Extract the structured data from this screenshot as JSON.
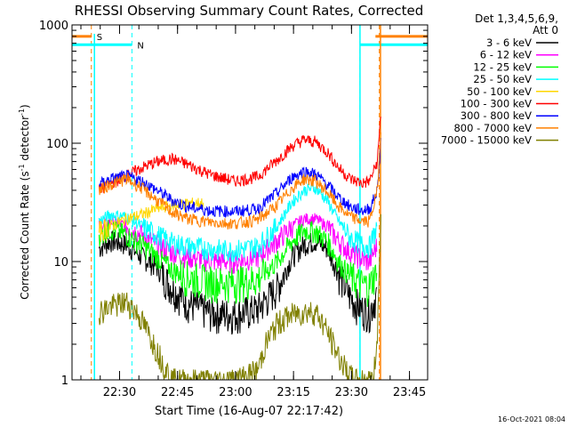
{
  "chart_data": {
    "type": "line",
    "title": "RHESSI Observing Summary Count Rates, Corrected",
    "xlabel": "Start Time (16-Aug-07 22:17:42)",
    "ylabel_main": "Corrected Count Rate (s",
    "ylabel_sup1": "-1",
    "ylabel_mid": " detector",
    "ylabel_sup2": "-1",
    "ylabel_end": ")",
    "yscale": "log",
    "ylim": [
      1,
      1000
    ],
    "xlim_minutes": [
      0,
      92
    ],
    "x_ticks": [
      {
        "label": "22:30",
        "minutes": 12.3
      },
      {
        "label": "22:45",
        "minutes": 27.3
      },
      {
        "label": "23:00",
        "minutes": 42.3
      },
      {
        "label": "23:15",
        "minutes": 57.3
      },
      {
        "label": "23:30",
        "minutes": 72.3
      },
      {
        "label": "23:45",
        "minutes": 87.3
      }
    ],
    "y_ticks": [
      {
        "label": "1",
        "value": 1
      },
      {
        "label": "10",
        "value": 10
      },
      {
        "label": "100",
        "value": 100
      },
      {
        "label": "1000",
        "value": 1000
      }
    ],
    "legend": {
      "header1": "Det 1,3,4,5,6,9,",
      "header2": "Att 0",
      "position": "right"
    },
    "series": [
      {
        "name": "3 - 6 keV",
        "color": "#000000",
        "points": [
          [
            7,
            13
          ],
          [
            10,
            15
          ],
          [
            14,
            14
          ],
          [
            18,
            11
          ],
          [
            22,
            9
          ],
          [
            26,
            6
          ],
          [
            30,
            4.5
          ],
          [
            36,
            3.7
          ],
          [
            42,
            3.6
          ],
          [
            48,
            4
          ],
          [
            53,
            6
          ],
          [
            57,
            11
          ],
          [
            60,
            14
          ],
          [
            63,
            15
          ],
          [
            66,
            13
          ],
          [
            69,
            8
          ],
          [
            72,
            5
          ],
          [
            75,
            4
          ],
          [
            77,
            3.8
          ],
          [
            79,
            5.5
          ]
        ]
      },
      {
        "name": "6 - 12 keV",
        "color": "#ff00ff",
        "points": [
          [
            7,
            20
          ],
          [
            10,
            22
          ],
          [
            14,
            20
          ],
          [
            18,
            17
          ],
          [
            22,
            14
          ],
          [
            26,
            12
          ],
          [
            30,
            11
          ],
          [
            36,
            10.2
          ],
          [
            42,
            10
          ],
          [
            48,
            11
          ],
          [
            53,
            15
          ],
          [
            57,
            20
          ],
          [
            60,
            23
          ],
          [
            63,
            23
          ],
          [
            66,
            20
          ],
          [
            69,
            15
          ],
          [
            72,
            12
          ],
          [
            75,
            10.5
          ],
          [
            77,
            10
          ],
          [
            79,
            14
          ]
        ]
      },
      {
        "name": "12 - 25 keV",
        "color": "#00ff00",
        "points": [
          [
            7,
            17
          ],
          [
            10,
            19
          ],
          [
            14,
            17
          ],
          [
            18,
            14
          ],
          [
            22,
            11
          ],
          [
            26,
            8.5
          ],
          [
            30,
            7.5
          ],
          [
            36,
            6.8
          ],
          [
            42,
            6.7
          ],
          [
            48,
            7.2
          ],
          [
            53,
            10
          ],
          [
            57,
            15
          ],
          [
            60,
            18.5
          ],
          [
            63,
            18
          ],
          [
            66,
            15
          ],
          [
            69,
            10
          ],
          [
            72,
            7.5
          ],
          [
            75,
            6.5
          ],
          [
            77,
            6.3
          ],
          [
            79,
            9
          ]
        ]
      },
      {
        "name": "25 - 50 keV",
        "color": "#00ffff",
        "points": [
          [
            7,
            22
          ],
          [
            10,
            25
          ],
          [
            14,
            24
          ],
          [
            18,
            20
          ],
          [
            22,
            17
          ],
          [
            26,
            14.5
          ],
          [
            30,
            13.5
          ],
          [
            36,
            12.8
          ],
          [
            42,
            12.5
          ],
          [
            48,
            13.5
          ],
          [
            53,
            20
          ],
          [
            57,
            32
          ],
          [
            60,
            40
          ],
          [
            63,
            42
          ],
          [
            66,
            33
          ],
          [
            69,
            22
          ],
          [
            72,
            16
          ],
          [
            75,
            14
          ],
          [
            77,
            13.5
          ],
          [
            79,
            20
          ]
        ]
      },
      {
        "name": "50 - 100 keV",
        "color": "#ffd700",
        "points": [
          [
            7,
            18
          ],
          [
            10,
            20
          ],
          [
            14,
            23
          ],
          [
            18,
            25
          ],
          [
            22,
            28
          ],
          [
            26,
            30
          ],
          [
            30,
            31
          ],
          [
            34,
            31.5
          ]
        ]
      },
      {
        "name": "100 - 300 keV",
        "color": "#ff0000",
        "points": [
          [
            7,
            40
          ],
          [
            10,
            46
          ],
          [
            14,
            53
          ],
          [
            18,
            62
          ],
          [
            22,
            70
          ],
          [
            26,
            74
          ],
          [
            30,
            66
          ],
          [
            36,
            54
          ],
          [
            42,
            48
          ],
          [
            48,
            52
          ],
          [
            53,
            72
          ],
          [
            57,
            95
          ],
          [
            60,
            107
          ],
          [
            63,
            103
          ],
          [
            66,
            85
          ],
          [
            69,
            62
          ],
          [
            72,
            50
          ],
          [
            75,
            46
          ],
          [
            77,
            48
          ],
          [
            79,
            70
          ],
          [
            80,
            200
          ]
        ]
      },
      {
        "name": "300 - 800 keV",
        "color": "#0000ff",
        "points": [
          [
            7,
            45
          ],
          [
            10,
            50
          ],
          [
            14,
            53
          ],
          [
            18,
            48
          ],
          [
            22,
            40
          ],
          [
            26,
            33
          ],
          [
            30,
            29
          ],
          [
            36,
            27
          ],
          [
            42,
            26.5
          ],
          [
            48,
            28
          ],
          [
            53,
            38
          ],
          [
            57,
            52
          ],
          [
            60,
            58
          ],
          [
            63,
            55
          ],
          [
            66,
            45
          ],
          [
            69,
            35
          ],
          [
            72,
            29
          ],
          [
            75,
            27
          ],
          [
            77,
            28
          ],
          [
            79,
            40
          ],
          [
            80,
            120
          ]
        ]
      },
      {
        "name": "800 - 7000 keV",
        "color": "#ff8000",
        "points": [
          [
            7,
            40
          ],
          [
            10,
            45
          ],
          [
            14,
            50
          ],
          [
            18,
            42
          ],
          [
            22,
            33
          ],
          [
            26,
            26
          ],
          [
            30,
            23
          ],
          [
            36,
            21.5
          ],
          [
            42,
            21
          ],
          [
            48,
            22.5
          ],
          [
            53,
            30
          ],
          [
            57,
            42
          ],
          [
            60,
            50
          ],
          [
            63,
            48
          ],
          [
            66,
            39
          ],
          [
            69,
            29
          ],
          [
            72,
            24
          ],
          [
            75,
            22
          ],
          [
            77,
            22
          ],
          [
            79,
            40
          ],
          [
            80,
            150
          ]
        ]
      },
      {
        "name": "7000 - 15000 keV",
        "color": "#808000",
        "points": [
          [
            7,
            3.8
          ],
          [
            10,
            4.2
          ],
          [
            14,
            4.6
          ],
          [
            16,
            4
          ],
          [
            18,
            3.2
          ],
          [
            20,
            2.4
          ],
          [
            22,
            1.8
          ],
          [
            24,
            1.3
          ],
          [
            26,
            1.0
          ],
          [
            30,
            1.0
          ],
          [
            36,
            1.0
          ],
          [
            42,
            1.0
          ],
          [
            48,
            1.2
          ],
          [
            50,
            2
          ],
          [
            53,
            3
          ],
          [
            56,
            3.5
          ],
          [
            60,
            3.8
          ],
          [
            63,
            3.8
          ],
          [
            65,
            3
          ],
          [
            67,
            2.2
          ],
          [
            69,
            1.6
          ],
          [
            71,
            1.2
          ],
          [
            73,
            1.0
          ],
          [
            76,
            1.0
          ],
          [
            78,
            1.0
          ],
          [
            79,
            2.5
          ],
          [
            80,
            30
          ]
        ]
      }
    ],
    "overlays": [
      {
        "name": "S",
        "color": "#ff8000",
        "y": 800,
        "segments": [
          [
            0,
            5
          ]
        ],
        "segments2": [
          [
            78.5,
            92
          ]
        ],
        "marks": [
          5,
          79.5
        ],
        "label": "S"
      },
      {
        "name": "N",
        "color": "#00ffff",
        "y": 680,
        "segments": [
          [
            0,
            15.5
          ]
        ],
        "segments2": [
          [
            74.5,
            92
          ]
        ],
        "marks": [
          15.5,
          74.5
        ],
        "label": "N"
      }
    ],
    "grid": false
  },
  "footer": {
    "timestamp": "16-Oct-2021 08:04"
  }
}
